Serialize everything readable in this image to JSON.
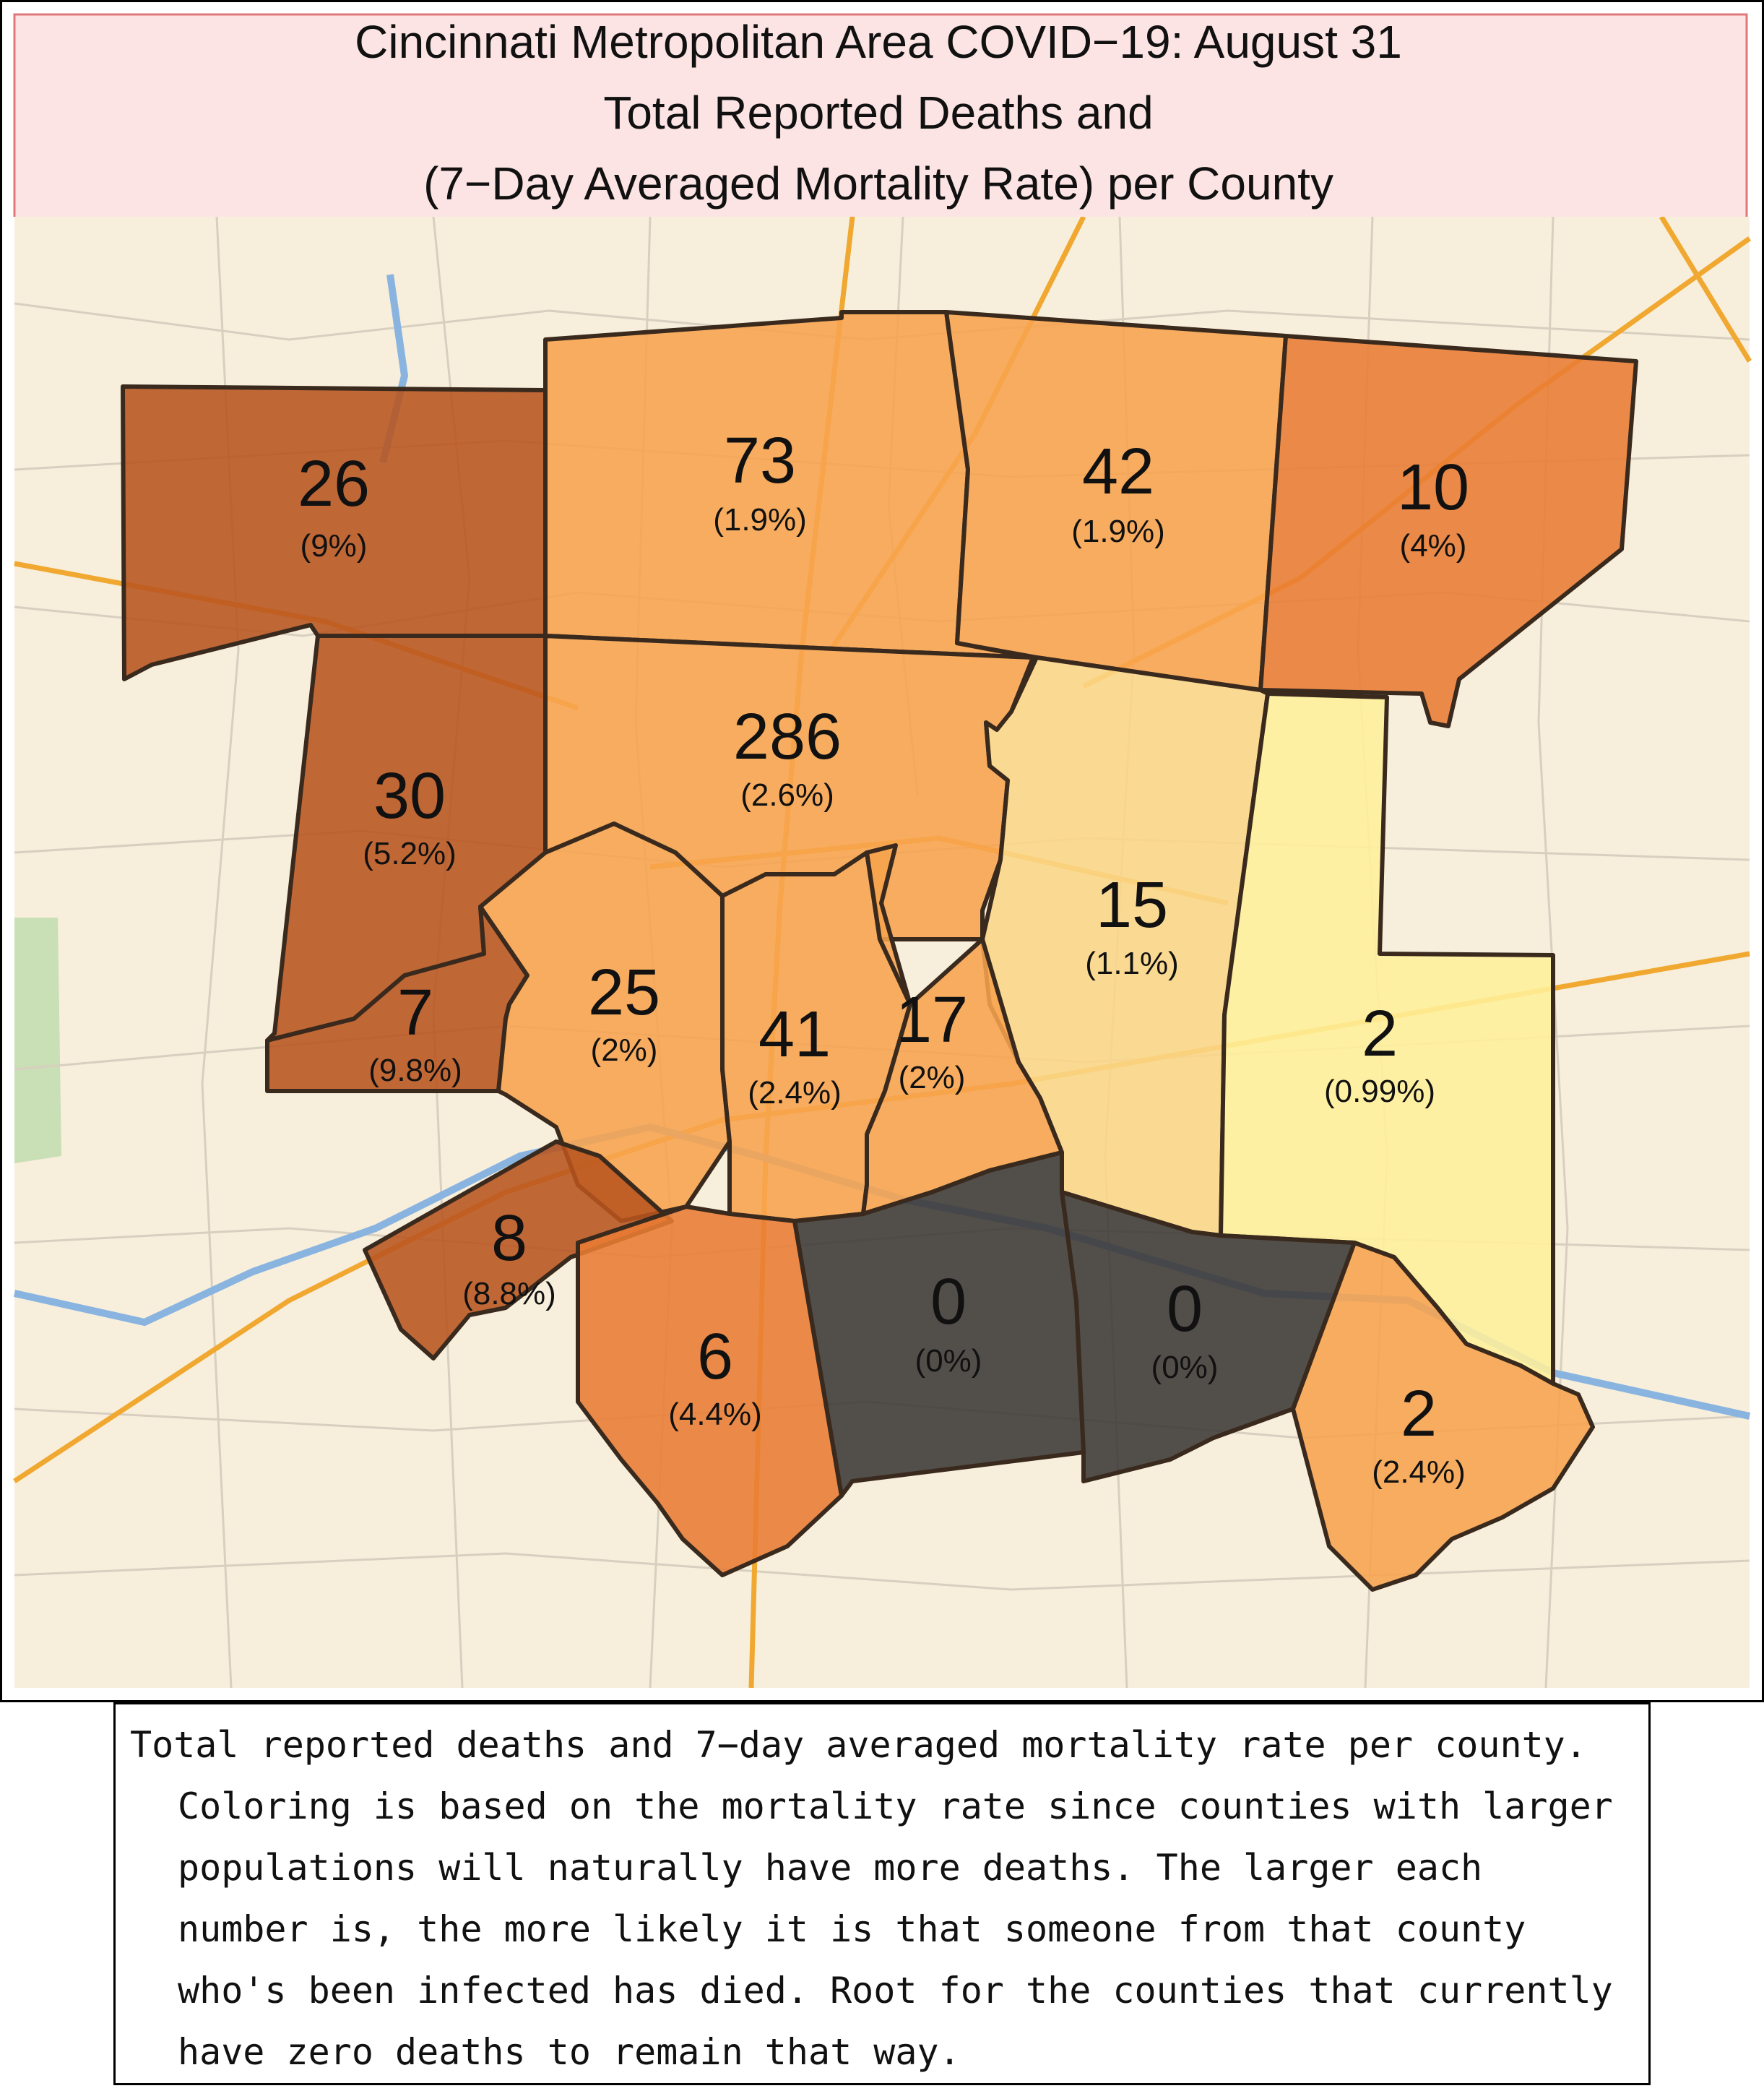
{
  "title": {
    "line1": "Cincinnati Metropolitan Area COVID−19: August 31",
    "line2": "Total Reported Deaths and",
    "line3": "(7−Day Averaged Mortality Rate) per County"
  },
  "colors": {
    "title_band": "#fde4e4",
    "title_border": "#e0787a",
    "basemap": "#f7efdc",
    "very_high": "#b8541f",
    "high": "#e97c33",
    "medium": "#f7a34d",
    "low": "#fbd688",
    "very_low": "#fff09a",
    "zero": "#3b3836",
    "county_border": "#3a2a1e",
    "river": "#8ab4e0",
    "highway": "#f0a830"
  },
  "counties": [
    {
      "id": "nw",
      "deaths": "26",
      "rate": "(9%)",
      "rate_value": 9,
      "color": "very_high"
    },
    {
      "id": "n-center",
      "deaths": "73",
      "rate": "(1.9%)",
      "rate_value": 1.9,
      "color": "medium"
    },
    {
      "id": "n-east",
      "deaths": "42",
      "rate": "(1.9%)",
      "rate_value": 1.9,
      "color": "medium"
    },
    {
      "id": "ne",
      "deaths": "10",
      "rate": "(4%)",
      "rate_value": 4,
      "color": "high"
    },
    {
      "id": "west",
      "deaths": "30",
      "rate": "(5.2%)",
      "rate_value": 5.2,
      "color": "very_high"
    },
    {
      "id": "center",
      "deaths": "286",
      "rate": "(2.6%)",
      "rate_value": 2.6,
      "color": "medium"
    },
    {
      "id": "east",
      "deaths": "15",
      "rate": "(1.1%)",
      "rate_value": 1.1,
      "color": "low"
    },
    {
      "id": "far-east",
      "deaths": "2",
      "rate": "(0.99%)",
      "rate_value": 0.99,
      "color": "very_low"
    },
    {
      "id": "sw-small",
      "deaths": "7",
      "rate": "(9.8%)",
      "rate_value": 9.8,
      "color": "very_high"
    },
    {
      "id": "boone",
      "deaths": "25",
      "rate": "(2%)",
      "rate_value": 2,
      "color": "medium"
    },
    {
      "id": "kenton",
      "deaths": "41",
      "rate": "(2.4%)",
      "rate_value": 2.4,
      "color": "medium"
    },
    {
      "id": "campbell",
      "deaths": "17",
      "rate": "(2%)",
      "rate_value": 2,
      "color": "medium"
    },
    {
      "id": "gallatin",
      "deaths": "8",
      "rate": "(8.8%)",
      "rate_value": 8.8,
      "color": "very_high"
    },
    {
      "id": "grant",
      "deaths": "6",
      "rate": "(4.4%)",
      "rate_value": 4.4,
      "color": "high"
    },
    {
      "id": "pendleton",
      "deaths": "0",
      "rate": "(0%)",
      "rate_value": 0,
      "color": "zero"
    },
    {
      "id": "bracken",
      "deaths": "0",
      "rate": "(0%)",
      "rate_value": 0,
      "color": "zero"
    },
    {
      "id": "mason",
      "deaths": "2",
      "rate": "(2.4%)",
      "rate_value": 2.4,
      "color": "medium"
    }
  ],
  "caption": "Total reported deaths and 7−day averaged mortality rate per county. Coloring is based on the mortality rate since counties with larger populations will naturally have more deaths. The larger each number is, the more likely it is that someone from that county who's been infected has died. Root for the counties that currently have zero deaths to remain that way."
}
